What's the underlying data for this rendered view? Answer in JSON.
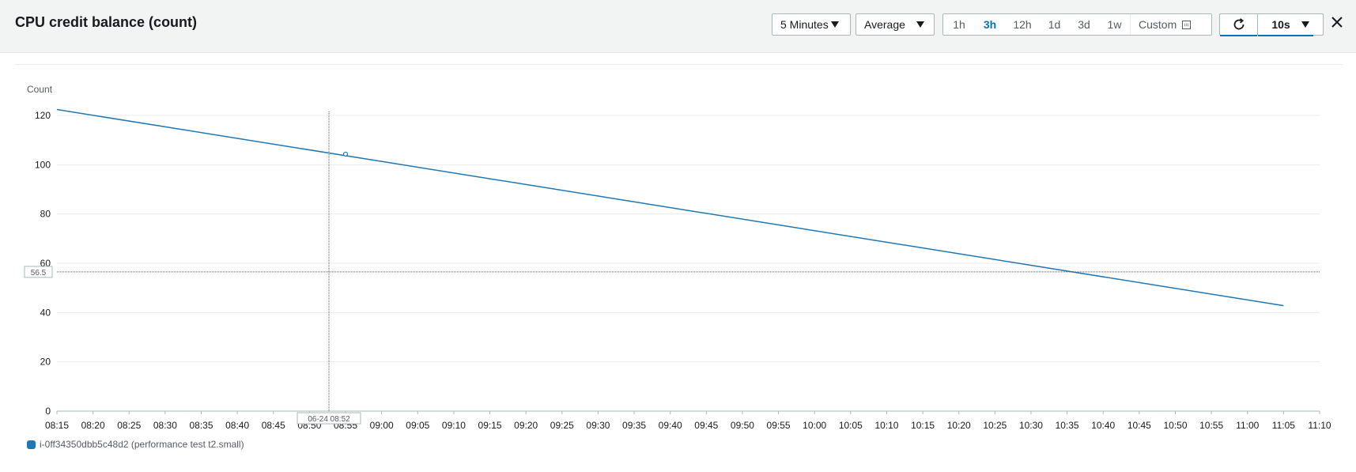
{
  "panel": {
    "title": "CPU credit balance (count)",
    "period": "5 Minutes",
    "statistic": "Average",
    "time_ranges": [
      "1h",
      "3h",
      "12h",
      "1d",
      "3d",
      "1w"
    ],
    "selected_range": "3h",
    "custom_label": "Custom",
    "refresh_interval": "10s"
  },
  "chart_data": {
    "type": "line",
    "ylabel": "Count",
    "ylim": [
      0,
      120
    ],
    "yticks": [
      "0",
      "20",
      "40",
      "60",
      "80",
      "100",
      "120"
    ],
    "x_tick_labels": [
      "08:15",
      "08:20",
      "08:25",
      "08:30",
      "08:35",
      "08:40",
      "08:45",
      "08:50",
      "08:55",
      "09:00",
      "09:05",
      "09:10",
      "09:15",
      "09:20",
      "09:25",
      "09:30",
      "09:35",
      "09:40",
      "09:45",
      "09:50",
      "09:55",
      "10:00",
      "10:05",
      "10:10",
      "10:15",
      "10:20",
      "10:25",
      "10:30",
      "10:35",
      "10:40",
      "10:45",
      "10:50",
      "10:55",
      "11:00",
      "11:05",
      "11:10"
    ],
    "grid": true,
    "series": [
      {
        "name": "i-0ff34350dbb5c48d2 (performance test t2.small)",
        "color": "#1f77b4",
        "x": [
          "08:15",
          "11:05"
        ],
        "y": [
          122.4,
          42.8
        ]
      }
    ],
    "hover_point": {
      "x": "08:55",
      "y": 104.3
    },
    "crosshair_x_label": "06-24 08:52",
    "crosshair_y_label": "56.5",
    "legend_position": "bottom-left"
  }
}
